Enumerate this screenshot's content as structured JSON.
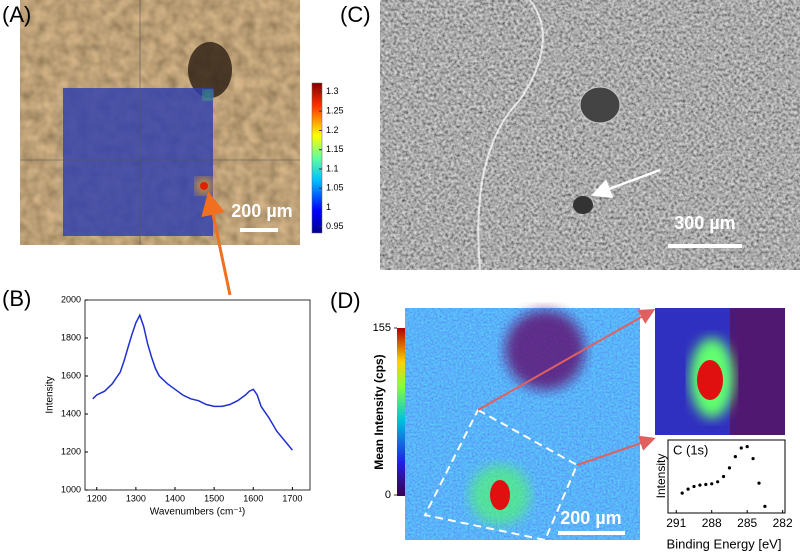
{
  "panels": {
    "a": {
      "label": "(A)",
      "scale_bar": "200 µm",
      "colorbar": {
        "clim": [
          0.934,
          1.323
        ],
        "ticks": [
          1.3,
          1.25,
          1.2,
          1.15,
          1.1,
          1.05,
          1,
          0.95
        ]
      }
    },
    "b": {
      "label": "(B)",
      "chart": {
        "type": "line",
        "x_label": "Wavenumbers (cm⁻¹)",
        "y_label": "Intensity",
        "color": "#1f2fd0",
        "xlim": [
          1170,
          1745
        ],
        "ylim": [
          1000,
          2000
        ],
        "xticks": [
          1200,
          1300,
          1400,
          1500,
          1600,
          1700
        ],
        "yticks": [
          1000,
          1200,
          1400,
          1600,
          1800,
          2000
        ],
        "x": [
          1190,
          1200,
          1220,
          1240,
          1260,
          1270,
          1280,
          1290,
          1300,
          1310,
          1320,
          1330,
          1340,
          1350,
          1360,
          1380,
          1400,
          1420,
          1440,
          1460,
          1480,
          1500,
          1520,
          1540,
          1560,
          1580,
          1590,
          1600,
          1610,
          1620,
          1640,
          1660,
          1680,
          1700
        ],
        "values": [
          1480,
          1500,
          1520,
          1560,
          1620,
          1680,
          1750,
          1820,
          1880,
          1920,
          1860,
          1770,
          1700,
          1640,
          1600,
          1560,
          1530,
          1500,
          1480,
          1470,
          1450,
          1440,
          1440,
          1450,
          1470,
          1500,
          1520,
          1530,
          1500,
          1440,
          1380,
          1310,
          1260,
          1210
        ]
      }
    },
    "c": {
      "label": "(C)",
      "scale_bar": "300 µm"
    },
    "d": {
      "label": "(D)",
      "scale_bar": "200 µm",
      "colorbar": {
        "title": "Mean Intensity (cps)",
        "clim": [
          0,
          155
        ],
        "ticks": [
          155,
          0
        ]
      },
      "spectrum": {
        "type": "scatter",
        "annotation": "C (1s)",
        "x_label": "Binding Energy [eV]",
        "y_label": "Intensity",
        "xlim": [
          291.7,
          281.8
        ],
        "ylim": [
          0,
          1.1
        ],
        "xticks": [
          291,
          288,
          285,
          282
        ],
        "x": [
          290.5,
          290,
          289.5,
          289,
          288.5,
          288,
          287.5,
          287,
          286.5,
          286,
          285.5,
          285,
          284.5,
          284,
          283.5
        ],
        "values": [
          0.3,
          0.36,
          0.4,
          0.42,
          0.43,
          0.44,
          0.47,
          0.55,
          0.68,
          0.85,
          0.98,
          1.0,
          0.82,
          0.45,
          0.1
        ]
      }
    }
  }
}
